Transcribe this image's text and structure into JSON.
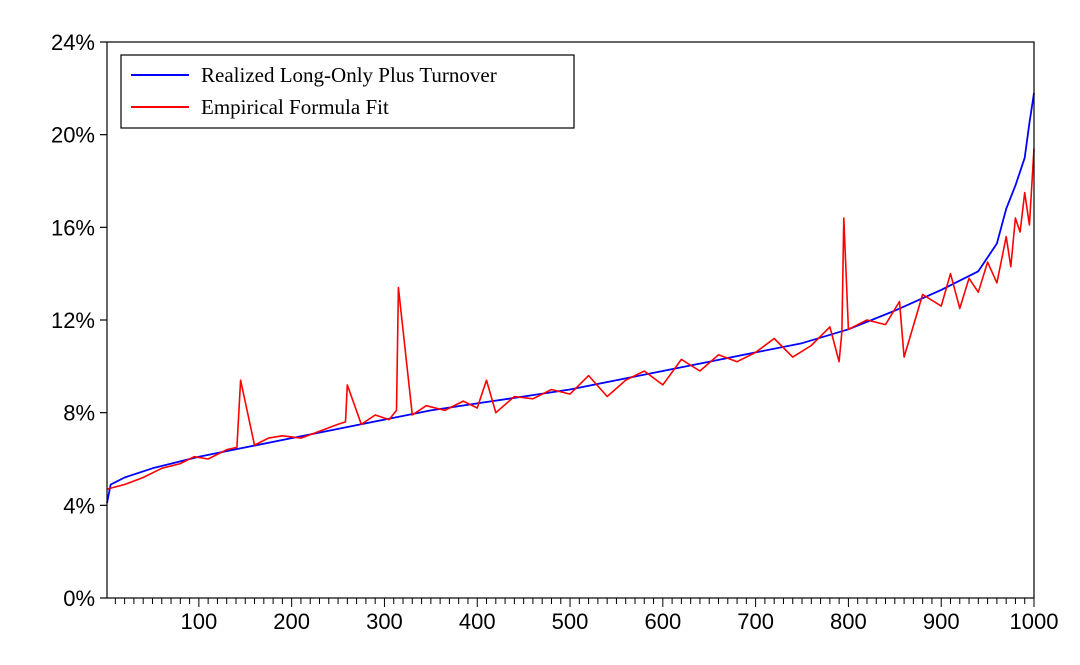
{
  "chart_data": {
    "type": "line",
    "title": "",
    "xlabel": "",
    "ylabel": "",
    "xlim": [
      1,
      1000
    ],
    "ylim": [
      0,
      24
    ],
    "x_ticks": [
      100,
      200,
      300,
      400,
      500,
      600,
      700,
      800,
      900,
      1000
    ],
    "x_tick_labels": [
      "100",
      "200",
      "300",
      "400",
      "500",
      "600",
      "700",
      "800",
      "900",
      "1000"
    ],
    "y_ticks": [
      0,
      4,
      8,
      12,
      16,
      20,
      24
    ],
    "y_tick_labels": [
      "0%",
      "4%",
      "8%",
      "12%",
      "16%",
      "20%",
      "24%"
    ],
    "grid": false,
    "legend_position": "top-left",
    "series": [
      {
        "name": "Realized Long-Only Plus Turnover",
        "color": "#0000ff",
        "x": [
          1,
          5,
          10,
          20,
          50,
          100,
          150,
          200,
          250,
          300,
          350,
          400,
          450,
          500,
          550,
          600,
          650,
          700,
          750,
          800,
          850,
          900,
          940,
          960,
          970,
          980,
          990,
          995,
          1000
        ],
        "y": [
          4.1,
          4.9,
          5.0,
          5.2,
          5.6,
          6.1,
          6.5,
          6.9,
          7.3,
          7.7,
          8.1,
          8.4,
          8.7,
          9.0,
          9.4,
          9.8,
          10.2,
          10.6,
          11.0,
          11.6,
          12.4,
          13.3,
          14.1,
          15.3,
          16.8,
          17.8,
          19.0,
          20.5,
          21.8
        ]
      },
      {
        "name": "Empirical Formula Fit",
        "color": "#ff0000",
        "x": [
          1,
          20,
          40,
          60,
          80,
          95,
          110,
          130,
          141,
          145,
          160,
          175,
          190,
          210,
          230,
          250,
          258,
          260,
          275,
          290,
          305,
          313,
          315,
          330,
          345,
          365,
          385,
          400,
          410,
          420,
          440,
          460,
          480,
          500,
          520,
          540,
          560,
          580,
          600,
          620,
          640,
          660,
          680,
          700,
          720,
          740,
          760,
          780,
          790,
          793,
          795,
          800,
          820,
          840,
          855,
          860,
          880,
          900,
          910,
          920,
          930,
          940,
          950,
          960,
          970,
          975,
          980,
          985,
          990,
          995,
          1000
        ],
        "y": [
          4.7,
          4.9,
          5.2,
          5.6,
          5.8,
          6.1,
          6.0,
          6.4,
          6.5,
          9.4,
          6.6,
          6.9,
          7.0,
          6.9,
          7.2,
          7.5,
          7.6,
          9.2,
          7.5,
          7.9,
          7.7,
          8.1,
          13.4,
          7.9,
          8.3,
          8.1,
          8.5,
          8.2,
          9.4,
          8.0,
          8.7,
          8.6,
          9.0,
          8.8,
          9.6,
          8.7,
          9.4,
          9.8,
          9.2,
          10.3,
          9.8,
          10.5,
          10.2,
          10.6,
          11.2,
          10.4,
          10.9,
          11.7,
          10.2,
          11.5,
          16.4,
          11.6,
          12.0,
          11.8,
          12.8,
          10.4,
          13.1,
          12.6,
          14.0,
          12.5,
          13.8,
          13.2,
          14.5,
          13.6,
          15.6,
          14.3,
          16.4,
          15.8,
          17.5,
          16.1,
          19.4
        ]
      }
    ]
  }
}
